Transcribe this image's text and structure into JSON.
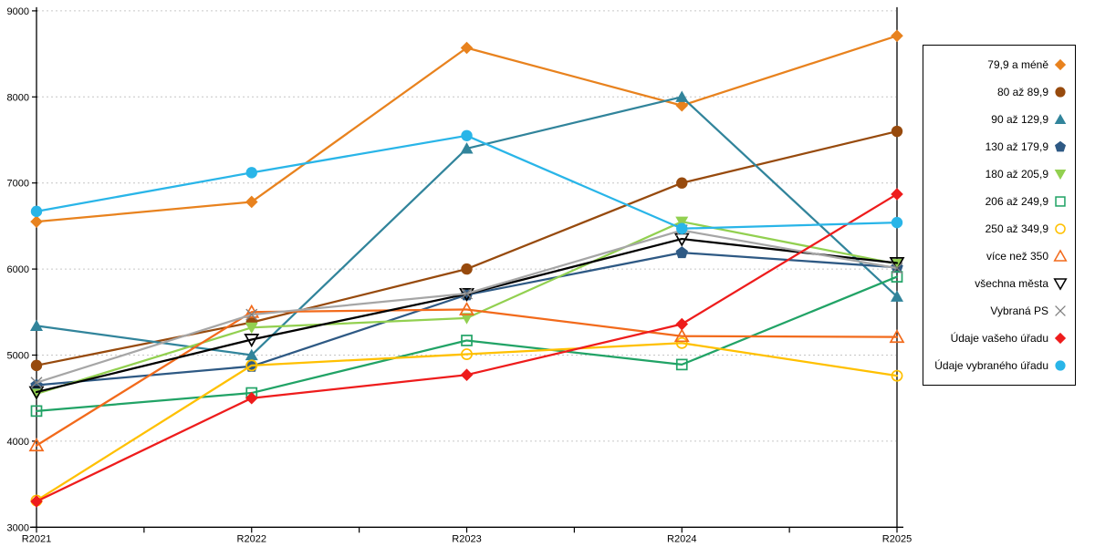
{
  "page": {
    "background": "#FFFFFF"
  },
  "chart_data": {
    "type": "line",
    "title": "",
    "xlabel": "",
    "ylabel": "",
    "categories": [
      "R2021",
      "R2022",
      "R2023",
      "R2024",
      "R2025"
    ],
    "ylim": [
      3000,
      9000
    ],
    "ytick_step": 1000,
    "ytick_labels": [
      "3000",
      "4000",
      "5000",
      "6000",
      "7000",
      "8000",
      "9000"
    ],
    "grid": "dashed-horizontal",
    "legend_position": "right",
    "series": [
      {
        "name": "79,9 a méně",
        "color": "#E8821E",
        "marker": "diamond-filled",
        "values": [
          6550,
          6780,
          8570,
          7900,
          8710
        ]
      },
      {
        "name": "80 až 89,9",
        "color": "#974A0D",
        "marker": "circle-filled",
        "values": [
          4880,
          5380,
          6000,
          7000,
          7600
        ]
      },
      {
        "name": "90 až 129,9",
        "color": "#31849B",
        "marker": "triangle-up-filled",
        "values": [
          5340,
          5000,
          7400,
          8000,
          5680
        ]
      },
      {
        "name": "130 až 179,9",
        "color": "#2E5984",
        "marker": "pentagon-filled",
        "values": [
          4650,
          4870,
          5700,
          6190,
          6020
        ]
      },
      {
        "name": "180 až 205,9",
        "color": "#92D050",
        "marker": "triangle-down-filled",
        "values": [
          4550,
          5320,
          5430,
          6550,
          6060
        ]
      },
      {
        "name": "206 až 249,9",
        "color": "#21A366",
        "marker": "square-open",
        "values": [
          4350,
          4560,
          5170,
          4890,
          5910
        ]
      },
      {
        "name": "250 až 349,9",
        "color": "#FFC000",
        "marker": "circle-open",
        "values": [
          3310,
          4880,
          5010,
          5140,
          4760
        ]
      },
      {
        "name": "více než 350",
        "color": "#F26A1B",
        "marker": "triangle-up-open",
        "values": [
          3950,
          5500,
          5530,
          5220,
          5210
        ]
      },
      {
        "name": "všechna města",
        "color": "#000000",
        "marker": "triangle-down-open",
        "values": [
          4570,
          5180,
          5710,
          6350,
          6070
        ]
      },
      {
        "name": "Vybraná PS",
        "color": "#A6A6A6",
        "marker": "x-cross",
        "marker_color": "#7F7F7F",
        "values": [
          4680,
          5470,
          5715,
          6450,
          6010
        ]
      },
      {
        "name": "Údaje vašeho úřadu",
        "color": "#EE1C1C",
        "marker": "diamond-filled",
        "values": [
          3300,
          4500,
          4770,
          5360,
          6870
        ]
      },
      {
        "name": "Údaje vybraného úřadu",
        "color": "#29B5E8",
        "marker": "circle-filled",
        "values": [
          6670,
          7120,
          7550,
          6470,
          6540
        ]
      }
    ]
  }
}
